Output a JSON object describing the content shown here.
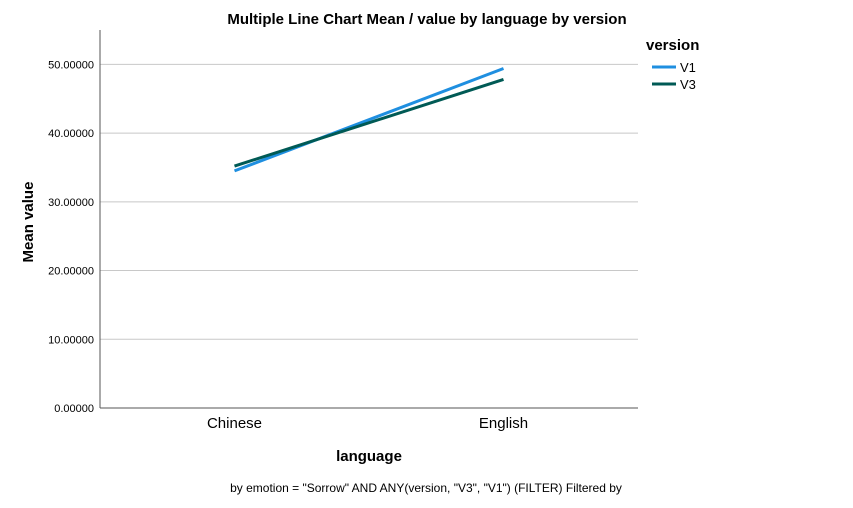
{
  "chart_data": {
    "type": "line",
    "title": "Multiple Line Chart Mean /  value by language by version",
    "xlabel": "language",
    "ylabel": "Mean value",
    "categories": [
      "Chinese",
      "English"
    ],
    "ylim": [
      0,
      55
    ],
    "yticks": [
      0,
      10,
      20,
      30,
      40,
      50
    ],
    "ytick_labels": [
      "0.00000",
      "10.00000",
      "20.00000",
      "30.00000",
      "40.00000",
      "50.00000"
    ],
    "grid": true,
    "legend": {
      "title": "version",
      "placement": "top-right"
    },
    "series": [
      {
        "name": "V1",
        "values": [
          34.5,
          49.4
        ],
        "color": "#1f8fe0"
      },
      {
        "name": "V3",
        "values": [
          35.2,
          47.8
        ],
        "color": "#005a55"
      }
    ],
    "footnote": "by emotion = \"Sorrow\" AND ANY(version, \"V3\", \"V1\") (FILTER) Filtered by"
  }
}
